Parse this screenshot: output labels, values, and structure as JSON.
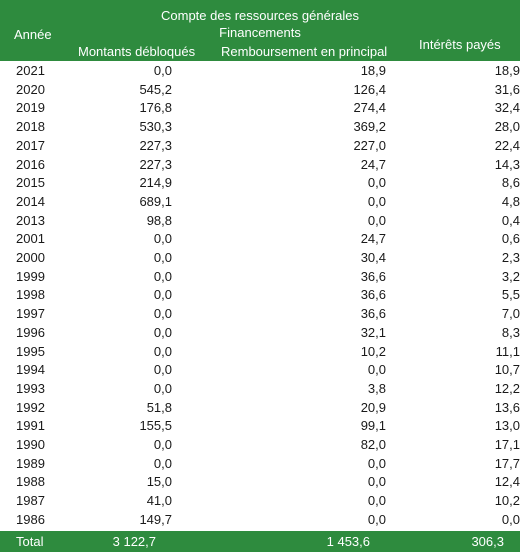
{
  "header": {
    "group_title": "Compte des ressources générales",
    "year_label": "Année",
    "financing_label": "Financements",
    "col_disbursed": "Montants débloqués",
    "col_repayment": "Remboursement en principal",
    "col_interest": "Intérêts payés"
  },
  "rows": [
    {
      "year": "2021",
      "disbursed": "0,0",
      "repayment": "18,9",
      "interest": "18,9"
    },
    {
      "year": "2020",
      "disbursed": "545,2",
      "repayment": "126,4",
      "interest": "31,6"
    },
    {
      "year": "2019",
      "disbursed": "176,8",
      "repayment": "274,4",
      "interest": "32,4"
    },
    {
      "year": "2018",
      "disbursed": "530,3",
      "repayment": "369,2",
      "interest": "28,0"
    },
    {
      "year": "2017",
      "disbursed": "227,3",
      "repayment": "227,0",
      "interest": "22,4"
    },
    {
      "year": "2016",
      "disbursed": "227,3",
      "repayment": "24,7",
      "interest": "14,3"
    },
    {
      "year": "2015",
      "disbursed": "214,9",
      "repayment": "0,0",
      "interest": "8,6"
    },
    {
      "year": "2014",
      "disbursed": "689,1",
      "repayment": "0,0",
      "interest": "4,8"
    },
    {
      "year": "2013",
      "disbursed": "98,8",
      "repayment": "0,0",
      "interest": "0,4"
    },
    {
      "year": "2001",
      "disbursed": "0,0",
      "repayment": "24,7",
      "interest": "0,6"
    },
    {
      "year": "2000",
      "disbursed": "0,0",
      "repayment": "30,4",
      "interest": "2,3"
    },
    {
      "year": "1999",
      "disbursed": "0,0",
      "repayment": "36,6",
      "interest": "3,2"
    },
    {
      "year": "1998",
      "disbursed": "0,0",
      "repayment": "36,6",
      "interest": "5,5"
    },
    {
      "year": "1997",
      "disbursed": "0,0",
      "repayment": "36,6",
      "interest": "7,0"
    },
    {
      "year": "1996",
      "disbursed": "0,0",
      "repayment": "32,1",
      "interest": "8,3"
    },
    {
      "year": "1995",
      "disbursed": "0,0",
      "repayment": "10,2",
      "interest": "11,1"
    },
    {
      "year": "1994",
      "disbursed": "0,0",
      "repayment": "0,0",
      "interest": "10,7"
    },
    {
      "year": "1993",
      "disbursed": "0,0",
      "repayment": "3,8",
      "interest": "12,2"
    },
    {
      "year": "1992",
      "disbursed": "51,8",
      "repayment": "20,9",
      "interest": "13,6"
    },
    {
      "year": "1991",
      "disbursed": "155,5",
      "repayment": "99,1",
      "interest": "13,0"
    },
    {
      "year": "1990",
      "disbursed": "0,0",
      "repayment": "82,0",
      "interest": "17,1"
    },
    {
      "year": "1989",
      "disbursed": "0,0",
      "repayment": "0,0",
      "interest": "17,7"
    },
    {
      "year": "1988",
      "disbursed": "15,0",
      "repayment": "0,0",
      "interest": "12,4"
    },
    {
      "year": "1987",
      "disbursed": "41,0",
      "repayment": "0,0",
      "interest": "10,2"
    },
    {
      "year": "1986",
      "disbursed": "149,7",
      "repayment": "0,0",
      "interest": "0,0"
    }
  ],
  "total": {
    "label": "Total",
    "disbursed": "3 122,7",
    "repayment": "1 453,6",
    "interest": "306,3"
  },
  "colors": {
    "header_bg": "#2e8b3e",
    "header_text": "#ffffff"
  }
}
